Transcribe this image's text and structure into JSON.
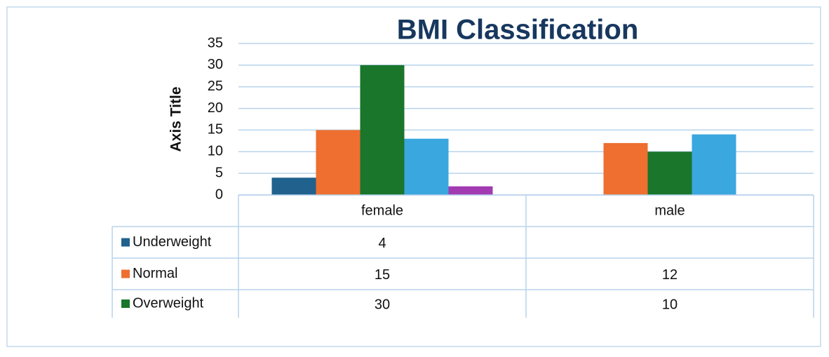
{
  "chart_data": {
    "type": "bar",
    "title": "BMI Classification",
    "y_axis_title": "Axis Title",
    "categories": [
      "female",
      "male"
    ],
    "series": [
      {
        "name": "Underweight",
        "color": "#20618e",
        "values": [
          4,
          null
        ]
      },
      {
        "name": "Normal",
        "color": "#ee6f2f",
        "values": [
          15,
          12
        ]
      },
      {
        "name": "Overweight",
        "color": "#19762b",
        "values": [
          30,
          10
        ]
      },
      {
        "name": null,
        "color": "#3aa7de",
        "values": [
          13,
          14
        ]
      },
      {
        "name": null,
        "color": "#a23bb2",
        "values": [
          2,
          null
        ]
      }
    ],
    "ylim": [
      0,
      35
    ],
    "yticks": [
      0,
      5,
      10,
      15,
      20,
      25,
      30,
      35
    ],
    "grid": true,
    "data_table_rows": 3
  }
}
